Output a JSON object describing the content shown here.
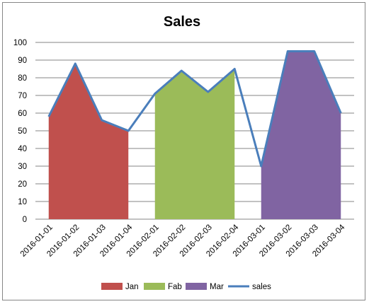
{
  "chart_data": {
    "type": "area",
    "title": "Sales",
    "xlabel": "",
    "ylabel": "",
    "ylim": [
      0,
      100
    ],
    "yticks": [
      0,
      10,
      20,
      30,
      40,
      50,
      60,
      70,
      80,
      90,
      100
    ],
    "grid": true,
    "legend_position": "bottom",
    "categories": [
      "2016-01-01",
      "2016-01-02",
      "2016-01-03",
      "2016-01-04",
      "2016-02-01",
      "2016-02-02",
      "2016-02-03",
      "2016-02-04",
      "2016-03-01",
      "2016-03-02",
      "2016-03-03",
      "2016-03-04"
    ],
    "series": [
      {
        "name": "Jan",
        "kind": "area",
        "color": "#C0504D",
        "values": [
          58,
          88,
          56,
          50,
          null,
          null,
          null,
          null,
          null,
          null,
          null,
          null
        ]
      },
      {
        "name": "Fab",
        "kind": "area",
        "color": "#9BBB59",
        "values": [
          null,
          null,
          null,
          null,
          71,
          84,
          72,
          85,
          null,
          null,
          null,
          null
        ]
      },
      {
        "name": "Mar",
        "kind": "area",
        "color": "#8064A2",
        "values": [
          null,
          null,
          null,
          null,
          null,
          null,
          null,
          null,
          30,
          95,
          95,
          60
        ]
      },
      {
        "name": "sales",
        "kind": "line",
        "color": "#4A7EBB",
        "values": [
          58,
          88,
          56,
          50,
          71,
          84,
          72,
          85,
          30,
          95,
          95,
          60
        ]
      }
    ]
  }
}
